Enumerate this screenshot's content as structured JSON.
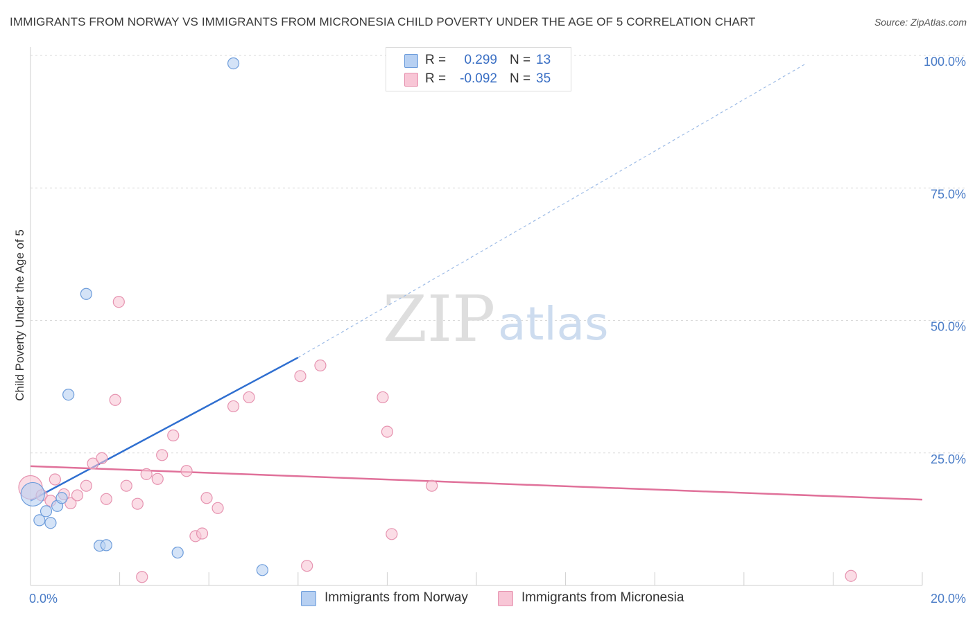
{
  "title": "IMMIGRANTS FROM NORWAY VS IMMIGRANTS FROM MICRONESIA CHILD POVERTY UNDER THE AGE OF 5 CORRELATION CHART",
  "source": "Source: ZipAtlas.com",
  "watermark": {
    "zip": "ZIP",
    "atlas": "atlas"
  },
  "legend": {
    "r_label": "R =",
    "n_label": "N =",
    "norway": {
      "r": "0.299",
      "n": "13"
    },
    "micronesia": {
      "r": "-0.092",
      "n": "35"
    }
  },
  "colors": {
    "norway_fill": "#b7d0f2",
    "norway_stroke": "#6e9ddb",
    "norway_line": "#2f6fd0",
    "micronesia_fill": "#f8c6d6",
    "micronesia_stroke": "#e693b0",
    "micronesia_line": "#e0719a",
    "tick_text": "#4a7cc7",
    "grid": "#d9d9d9"
  },
  "chart_data": {
    "type": "scatter",
    "title": "IMMIGRANTS FROM NORWAY VS IMMIGRANTS FROM MICRONESIA CHILD POVERTY UNDER THE AGE OF 5 CORRELATION CHART",
    "xlabel": "",
    "ylabel": "Child Poverty Under the Age of 5",
    "xlim": [
      0,
      20
    ],
    "ylim": [
      0,
      100
    ],
    "x_tick_labels": [
      {
        "value": 0,
        "label": "0.0%"
      },
      {
        "value": 20,
        "label": "20.0%"
      }
    ],
    "y_tick_labels": [
      {
        "value": 25,
        "label": "25.0%"
      },
      {
        "value": 50,
        "label": "50.0%"
      },
      {
        "value": 75,
        "label": "75.0%"
      },
      {
        "value": 100,
        "label": "100.0%"
      }
    ],
    "grid": true,
    "legend_position": "bottom",
    "series": [
      {
        "name": "Immigrants from Norway",
        "points": [
          {
            "x": 0.05,
            "y": 17.2,
            "big": true
          },
          {
            "x": 0.2,
            "y": 12.3
          },
          {
            "x": 0.35,
            "y": 14.0
          },
          {
            "x": 0.45,
            "y": 11.8
          },
          {
            "x": 0.6,
            "y": 15.0
          },
          {
            "x": 0.7,
            "y": 16.5
          },
          {
            "x": 0.85,
            "y": 36.0
          },
          {
            "x": 1.25,
            "y": 55.0
          },
          {
            "x": 1.55,
            "y": 7.5
          },
          {
            "x": 1.7,
            "y": 7.6
          },
          {
            "x": 3.3,
            "y": 6.2
          },
          {
            "x": 4.55,
            "y": 98.5
          },
          {
            "x": 5.2,
            "y": 2.9
          }
        ],
        "trend": {
          "x0": 0,
          "y0": 16.0,
          "x1": 6.0,
          "y1": 43.0,
          "dash_x1": 17.4,
          "dash_y1": 98.5
        }
      },
      {
        "name": "Immigrants from Micronesia",
        "points": [
          {
            "x": 0.0,
            "y": 18.5,
            "big": true
          },
          {
            "x": 0.25,
            "y": 17.0
          },
          {
            "x": 0.45,
            "y": 16.0
          },
          {
            "x": 0.55,
            "y": 20.0
          },
          {
            "x": 0.75,
            "y": 17.2
          },
          {
            "x": 0.9,
            "y": 15.5
          },
          {
            "x": 1.05,
            "y": 17.0
          },
          {
            "x": 1.25,
            "y": 18.8
          },
          {
            "x": 1.4,
            "y": 23.0
          },
          {
            "x": 1.6,
            "y": 24.0
          },
          {
            "x": 1.7,
            "y": 16.3
          },
          {
            "x": 1.9,
            "y": 35.0
          },
          {
            "x": 1.98,
            "y": 53.5
          },
          {
            "x": 2.15,
            "y": 18.8
          },
          {
            "x": 2.4,
            "y": 15.4
          },
          {
            "x": 2.5,
            "y": 1.6
          },
          {
            "x": 2.6,
            "y": 21.0
          },
          {
            "x": 2.85,
            "y": 20.1
          },
          {
            "x": 2.95,
            "y": 24.6
          },
          {
            "x": 3.2,
            "y": 28.3
          },
          {
            "x": 3.5,
            "y": 21.6
          },
          {
            "x": 3.7,
            "y": 9.3
          },
          {
            "x": 3.85,
            "y": 9.8
          },
          {
            "x": 3.95,
            "y": 16.5
          },
          {
            "x": 4.2,
            "y": 14.6
          },
          {
            "x": 4.55,
            "y": 33.8
          },
          {
            "x": 4.9,
            "y": 35.5
          },
          {
            "x": 6.05,
            "y": 39.5
          },
          {
            "x": 6.2,
            "y": 3.7
          },
          {
            "x": 6.5,
            "y": 41.5
          },
          {
            "x": 7.9,
            "y": 35.5
          },
          {
            "x": 8.0,
            "y": 29.0
          },
          {
            "x": 8.1,
            "y": 9.7
          },
          {
            "x": 9.0,
            "y": 18.8
          },
          {
            "x": 18.4,
            "y": 1.8
          }
        ],
        "trend": {
          "x0": 0,
          "y0": 22.5,
          "x1": 20,
          "y1": 16.2
        }
      }
    ]
  }
}
